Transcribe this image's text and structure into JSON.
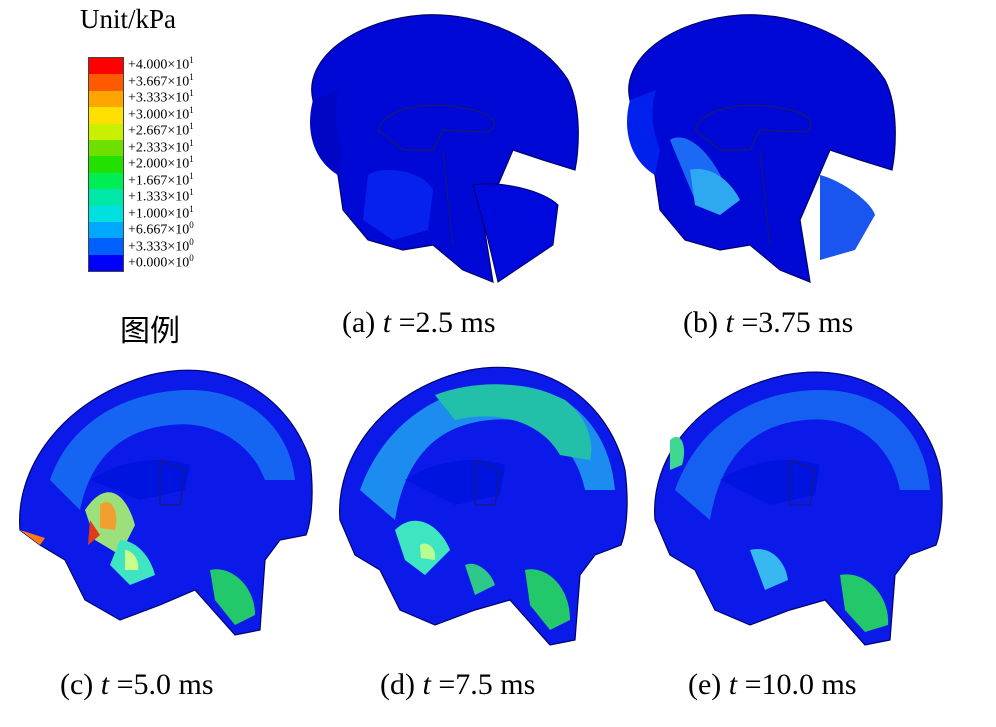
{
  "legend": {
    "unit": "Unit/kPa",
    "caption": "图例",
    "entries": [
      {
        "label": "+4.000×10",
        "exp": "1",
        "color": "#ff0000"
      },
      {
        "label": "+3.667×10",
        "exp": "1",
        "color": "#ff5a00"
      },
      {
        "label": "+3.333×10",
        "exp": "1",
        "color": "#ffa500"
      },
      {
        "label": "+3.000×10",
        "exp": "1",
        "color": "#ffe000"
      },
      {
        "label": "+2.667×10",
        "exp": "1",
        "color": "#c8f000"
      },
      {
        "label": "+2.333×10",
        "exp": "1",
        "color": "#6ee000"
      },
      {
        "label": "+2.000×10",
        "exp": "1",
        "color": "#22e000"
      },
      {
        "label": "+1.667×10",
        "exp": "1",
        "color": "#00ee55"
      },
      {
        "label": "+1.333×10",
        "exp": "1",
        "color": "#00e8a8"
      },
      {
        "label": "+1.000×10",
        "exp": "1",
        "color": "#00e0e0"
      },
      {
        "label": "+6.667×10",
        "exp": "0",
        "color": "#00a8ff"
      },
      {
        "label": "+3.333×10",
        "exp": "0",
        "color": "#0060ff"
      },
      {
        "label": "+0.000×10",
        "exp": "0",
        "color": "#0000ff"
      }
    ]
  },
  "panels": [
    {
      "prefix": "(a) ",
      "var": "t",
      "value": " =2.5 ms"
    },
    {
      "prefix": "(b) ",
      "var": "t",
      "value": " =3.75 ms"
    },
    {
      "prefix": "(c) ",
      "var": "t",
      "value": " =5.0 ms"
    },
    {
      "prefix": "(d) ",
      "var": "t",
      "value": " =7.5 ms"
    },
    {
      "prefix": "(e) ",
      "var": "t",
      "value": " =10.0 ms"
    }
  ]
}
